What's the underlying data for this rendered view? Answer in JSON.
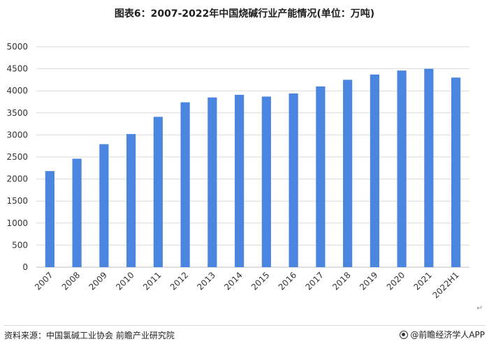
{
  "title": "图表6：2007-2022年中国烧碱行业产能情况(单位：万吨)",
  "source": "资料来源：中国氯碱工业协会 前瞻产业研究院",
  "brand": "@前瞻经济学人APP",
  "return_mark": "↵",
  "colors": {
    "bar": "#4a86e0",
    "grid": "#d9d9d9",
    "text": "#333333"
  },
  "chart_data": {
    "type": "bar",
    "categories": [
      "2007",
      "2008",
      "2009",
      "2010",
      "2011",
      "2012",
      "2013",
      "2014",
      "2015",
      "2016",
      "2017",
      "2018",
      "2019",
      "2020",
      "2021",
      "2022H1"
    ],
    "values": [
      2180,
      2460,
      2790,
      3020,
      3410,
      3740,
      3850,
      3910,
      3870,
      3940,
      4100,
      4250,
      4370,
      4460,
      4500,
      4300
    ],
    "ylim": [
      0,
      5000
    ],
    "yticks": [
      0,
      500,
      1000,
      1500,
      2000,
      2500,
      3000,
      3500,
      4000,
      4500,
      5000
    ],
    "grid": true,
    "legend": "none"
  }
}
